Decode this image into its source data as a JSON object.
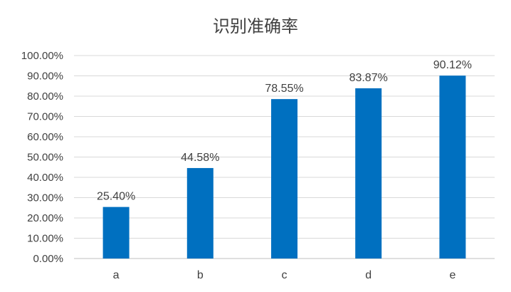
{
  "chart_data": {
    "type": "bar",
    "title": "识别准确率",
    "categories": [
      "a",
      "b",
      "c",
      "d",
      "e"
    ],
    "values": [
      25.4,
      44.58,
      78.55,
      83.87,
      90.12
    ],
    "data_labels": [
      "25.40%",
      "44.58%",
      "78.55%",
      "83.87%",
      "90.12%"
    ],
    "ylim": [
      0,
      100
    ],
    "y_ticks": [
      0,
      10,
      20,
      30,
      40,
      50,
      60,
      70,
      80,
      90,
      100
    ],
    "y_tick_labels": [
      "0.00%",
      "10.00%",
      "20.00%",
      "30.00%",
      "40.00%",
      "50.00%",
      "60.00%",
      "70.00%",
      "80.00%",
      "90.00%",
      "100.00%"
    ],
    "xlabel": "",
    "ylabel": "",
    "grid": true,
    "bar_color": "#0070C0"
  }
}
